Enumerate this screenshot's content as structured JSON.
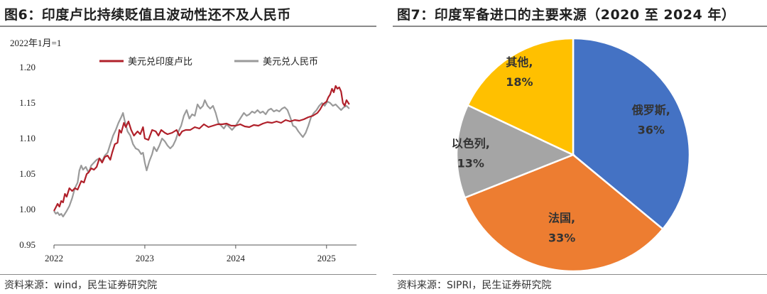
{
  "figures": {
    "left": {
      "title": "图6：印度卢比持续贬值且波动性还不及人民币",
      "source": "资料来源：wind，民生证券研究院"
    },
    "right": {
      "title": "图7：印度军备进口的主要来源（2020 至 2024 年）",
      "source": "资料来源：SIPRI，民生证券研究院"
    }
  },
  "chart_data": [
    {
      "type": "line",
      "base_note": "2022年1月=1",
      "xlabel": "",
      "ylabel": "",
      "ylim": [
        0.95,
        1.2
      ],
      "yticks": [
        "1.20",
        "1.15",
        "1.10",
        "1.05",
        "1.00",
        "0.95"
      ],
      "xticks": [
        "2022",
        "2023",
        "2024",
        "2025"
      ],
      "xlim": [
        2022.0,
        2025.33
      ],
      "grid": false,
      "legend_position": "top",
      "series": [
        {
          "name": "美元兑印度卢比",
          "color": "#b0202a",
          "points": [
            [
              2022.0,
              0.998
            ],
            [
              2022.02,
              1.003
            ],
            [
              2022.04,
              1.008
            ],
            [
              2022.06,
              1.004
            ],
            [
              2022.08,
              1.012
            ],
            [
              2022.1,
              1.01
            ],
            [
              2022.12,
              1.022
            ],
            [
              2022.14,
              1.018
            ],
            [
              2022.17,
              1.03
            ],
            [
              2022.2,
              1.026
            ],
            [
              2022.23,
              1.03
            ],
            [
              2022.26,
              1.028
            ],
            [
              2022.3,
              1.04
            ],
            [
              2022.33,
              1.038
            ],
            [
              2022.36,
              1.05
            ],
            [
              2022.38,
              1.052
            ],
            [
              2022.41,
              1.058
            ],
            [
              2022.44,
              1.056
            ],
            [
              2022.47,
              1.06
            ],
            [
              2022.5,
              1.072
            ],
            [
              2022.53,
              1.066
            ],
            [
              2022.56,
              1.074
            ],
            [
              2022.59,
              1.076
            ],
            [
              2022.62,
              1.07
            ],
            [
              2022.64,
              1.08
            ],
            [
              2022.67,
              1.092
            ],
            [
              2022.7,
              1.094
            ],
            [
              2022.72,
              1.112
            ],
            [
              2022.74,
              1.108
            ],
            [
              2022.77,
              1.122
            ],
            [
              2022.79,
              1.116
            ],
            [
              2022.82,
              1.124
            ],
            [
              2022.85,
              1.112
            ],
            [
              2022.88,
              1.104
            ],
            [
              2022.92,
              1.11
            ],
            [
              2022.95,
              1.106
            ],
            [
              2022.98,
              1.116
            ],
            [
              2023.0,
              1.1
            ],
            [
              2023.04,
              1.098
            ],
            [
              2023.08,
              1.112
            ],
            [
              2023.12,
              1.11
            ],
            [
              2023.15,
              1.104
            ],
            [
              2023.18,
              1.112
            ],
            [
              2023.22,
              1.108
            ],
            [
              2023.25,
              1.106
            ],
            [
              2023.3,
              1.108
            ],
            [
              2023.35,
              1.112
            ],
            [
              2023.38,
              1.104
            ],
            [
              2023.41,
              1.11
            ],
            [
              2023.45,
              1.112
            ],
            [
              2023.5,
              1.112
            ],
            [
              2023.55,
              1.116
            ],
            [
              2023.6,
              1.114
            ],
            [
              2023.65,
              1.12
            ],
            [
              2023.7,
              1.116
            ],
            [
              2023.75,
              1.118
            ],
            [
              2023.8,
              1.12
            ],
            [
              2023.85,
              1.12
            ],
            [
              2023.9,
              1.121
            ],
            [
              2023.95,
              1.118
            ],
            [
              2024.0,
              1.118
            ],
            [
              2024.05,
              1.12
            ],
            [
              2024.1,
              1.117
            ],
            [
              2024.15,
              1.116
            ],
            [
              2024.2,
              1.119
            ],
            [
              2024.25,
              1.118
            ],
            [
              2024.3,
              1.121
            ],
            [
              2024.35,
              1.123
            ],
            [
              2024.4,
              1.122
            ],
            [
              2024.45,
              1.124
            ],
            [
              2024.5,
              1.122
            ],
            [
              2024.55,
              1.126
            ],
            [
              2024.6,
              1.124
            ],
            [
              2024.65,
              1.126
            ],
            [
              2024.7,
              1.125
            ],
            [
              2024.75,
              1.127
            ],
            [
              2024.8,
              1.13
            ],
            [
              2024.85,
              1.132
            ],
            [
              2024.9,
              1.136
            ],
            [
              2024.93,
              1.141
            ],
            [
              2024.96,
              1.148
            ],
            [
              2025.0,
              1.152
            ],
            [
              2025.02,
              1.158
            ],
            [
              2025.04,
              1.162
            ],
            [
              2025.06,
              1.17
            ],
            [
              2025.08,
              1.165
            ],
            [
              2025.1,
              1.174
            ],
            [
              2025.12,
              1.17
            ],
            [
              2025.14,
              1.172
            ],
            [
              2025.16,
              1.166
            ],
            [
              2025.18,
              1.15
            ],
            [
              2025.2,
              1.146
            ],
            [
              2025.22,
              1.154
            ],
            [
              2025.25,
              1.148
            ]
          ]
        },
        {
          "name": "美元兑人民币",
          "color": "#9a9a9a",
          "points": [
            [
              2022.0,
              0.998
            ],
            [
              2022.02,
              0.994
            ],
            [
              2022.04,
              0.996
            ],
            [
              2022.06,
              0.992
            ],
            [
              2022.08,
              0.994
            ],
            [
              2022.1,
              0.99
            ],
            [
              2022.12,
              0.994
            ],
            [
              2022.14,
              0.998
            ],
            [
              2022.17,
              1.005
            ],
            [
              2022.2,
              1.016
            ],
            [
              2022.23,
              1.03
            ],
            [
              2022.26,
              1.038
            ],
            [
              2022.28,
              1.055
            ],
            [
              2022.3,
              1.062
            ],
            [
              2022.32,
              1.056
            ],
            [
              2022.35,
              1.06
            ],
            [
              2022.38,
              1.052
            ],
            [
              2022.41,
              1.062
            ],
            [
              2022.44,
              1.066
            ],
            [
              2022.47,
              1.07
            ],
            [
              2022.5,
              1.072
            ],
            [
              2022.53,
              1.068
            ],
            [
              2022.56,
              1.076
            ],
            [
              2022.59,
              1.08
            ],
            [
              2022.62,
              1.092
            ],
            [
              2022.65,
              1.104
            ],
            [
              2022.68,
              1.112
            ],
            [
              2022.71,
              1.122
            ],
            [
              2022.74,
              1.13
            ],
            [
              2022.76,
              1.136
            ],
            [
              2022.78,
              1.124
            ],
            [
              2022.81,
              1.11
            ],
            [
              2022.84,
              1.104
            ],
            [
              2022.87,
              1.092
            ],
            [
              2022.9,
              1.086
            ],
            [
              2022.93,
              1.084
            ],
            [
              2022.96,
              1.078
            ],
            [
              2022.98,
              1.08
            ],
            [
              2023.0,
              1.066
            ],
            [
              2023.02,
              1.055
            ],
            [
              2023.05,
              1.068
            ],
            [
              2023.08,
              1.078
            ],
            [
              2023.1,
              1.088
            ],
            [
              2023.13,
              1.082
            ],
            [
              2023.16,
              1.09
            ],
            [
              2023.19,
              1.1
            ],
            [
              2023.22,
              1.096
            ],
            [
              2023.25,
              1.09
            ],
            [
              2023.28,
              1.086
            ],
            [
              2023.31,
              1.09
            ],
            [
              2023.34,
              1.098
            ],
            [
              2023.37,
              1.11
            ],
            [
              2023.4,
              1.118
            ],
            [
              2023.43,
              1.132
            ],
            [
              2023.46,
              1.14
            ],
            [
              2023.49,
              1.128
            ],
            [
              2023.52,
              1.134
            ],
            [
              2023.55,
              1.132
            ],
            [
              2023.58,
              1.148
            ],
            [
              2023.61,
              1.142
            ],
            [
              2023.64,
              1.146
            ],
            [
              2023.66,
              1.154
            ],
            [
              2023.69,
              1.146
            ],
            [
              2023.72,
              1.142
            ],
            [
              2023.75,
              1.146
            ],
            [
              2023.78,
              1.136
            ],
            [
              2023.81,
              1.122
            ],
            [
              2023.84,
              1.118
            ],
            [
              2023.87,
              1.114
            ],
            [
              2023.9,
              1.12
            ],
            [
              2023.93,
              1.116
            ],
            [
              2023.96,
              1.112
            ],
            [
              2024.0,
              1.118
            ],
            [
              2024.03,
              1.124
            ],
            [
              2024.06,
              1.13
            ],
            [
              2024.09,
              1.136
            ],
            [
              2024.12,
              1.132
            ],
            [
              2024.15,
              1.134
            ],
            [
              2024.18,
              1.138
            ],
            [
              2024.21,
              1.136
            ],
            [
              2024.24,
              1.14
            ],
            [
              2024.27,
              1.136
            ],
            [
              2024.3,
              1.138
            ],
            [
              2024.33,
              1.134
            ],
            [
              2024.36,
              1.14
            ],
            [
              2024.39,
              1.142
            ],
            [
              2024.42,
              1.138
            ],
            [
              2024.45,
              1.14
            ],
            [
              2024.48,
              1.138
            ],
            [
              2024.51,
              1.142
            ],
            [
              2024.54,
              1.144
            ],
            [
              2024.57,
              1.14
            ],
            [
              2024.6,
              1.13
            ],
            [
              2024.63,
              1.118
            ],
            [
              2024.66,
              1.116
            ],
            [
              2024.69,
              1.11
            ],
            [
              2024.72,
              1.105
            ],
            [
              2024.74,
              1.102
            ],
            [
              2024.77,
              1.108
            ],
            [
              2024.8,
              1.118
            ],
            [
              2024.83,
              1.13
            ],
            [
              2024.86,
              1.136
            ],
            [
              2024.89,
              1.14
            ],
            [
              2024.92,
              1.146
            ],
            [
              2024.95,
              1.15
            ],
            [
              2024.98,
              1.146
            ],
            [
              2025.01,
              1.152
            ],
            [
              2025.04,
              1.15
            ],
            [
              2025.07,
              1.146
            ],
            [
              2025.1,
              1.148
            ],
            [
              2025.13,
              1.144
            ],
            [
              2025.16,
              1.14
            ],
            [
              2025.19,
              1.144
            ],
            [
              2025.22,
              1.146
            ],
            [
              2025.25,
              1.142
            ]
          ]
        }
      ]
    },
    {
      "type": "pie",
      "start_angle_deg": 0,
      "direction": "clockwise",
      "slices": [
        {
          "label": "俄罗斯,",
          "pct_label": "36%",
          "value": 36,
          "color": "#4472c4"
        },
        {
          "label": "法国,",
          "pct_label": "33%",
          "value": 33,
          "color": "#ed7d31"
        },
        {
          "label": "以色列,",
          "pct_label": "13%",
          "value": 13,
          "color": "#a5a5a5"
        },
        {
          "label": "其他,",
          "pct_label": "18%",
          "value": 18,
          "color": "#ffc000"
        }
      ]
    }
  ]
}
